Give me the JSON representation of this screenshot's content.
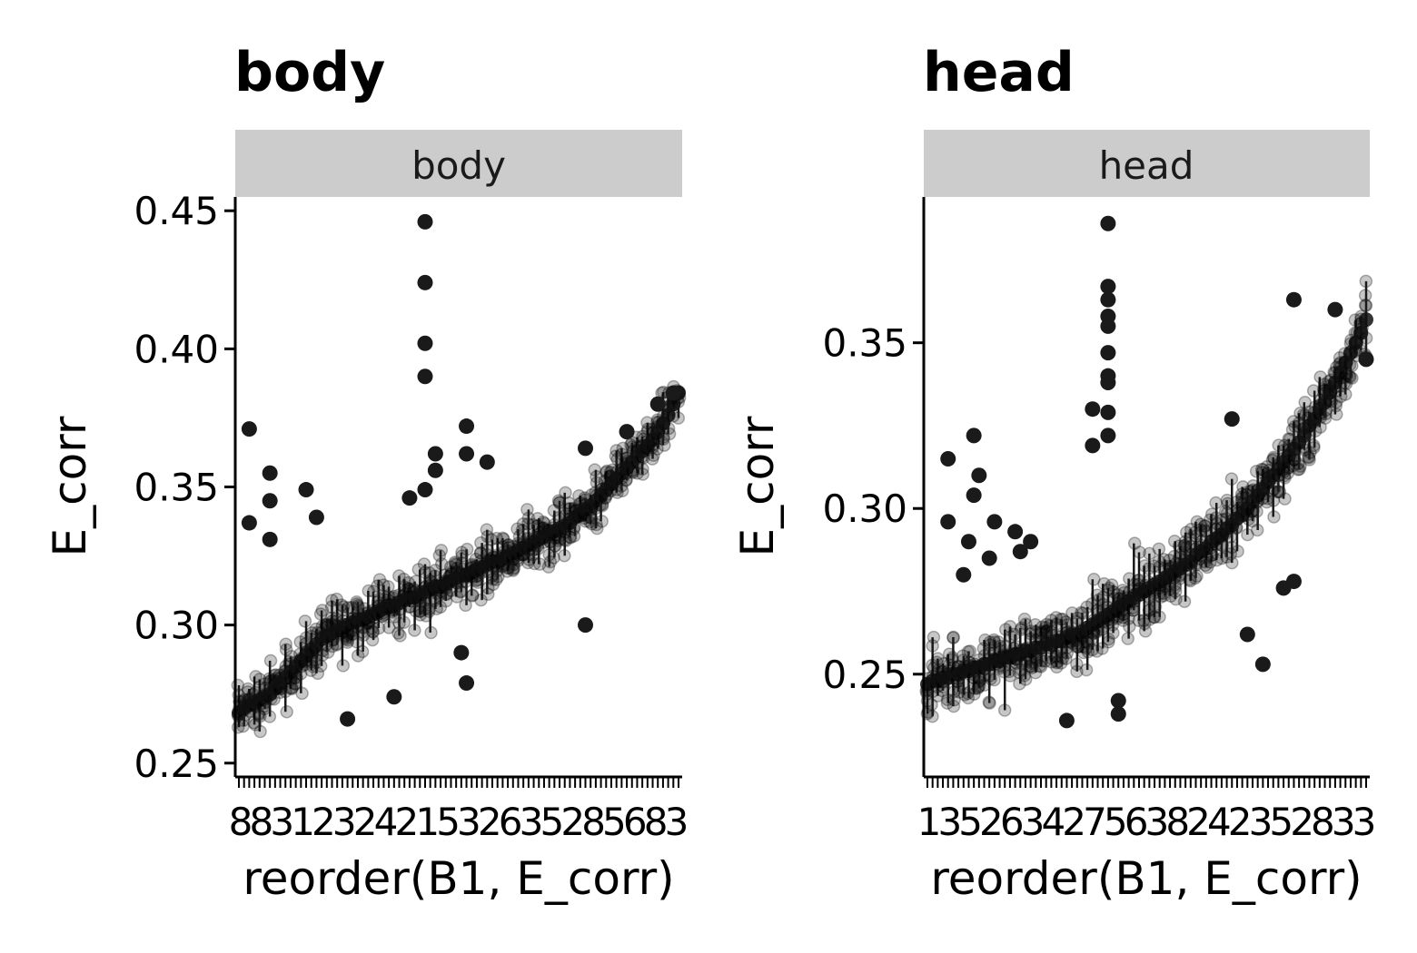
{
  "chart_data": [
    {
      "type": "scatter",
      "title": "body",
      "strip_label": "body",
      "xlabel": "reorder(B1, E_corr)",
      "ylabel": "E_corr",
      "ylim": [
        0.245,
        0.455
      ],
      "yticks": [
        "0.25",
        "0.30",
        "0.35",
        "0.40",
        "0.45"
      ],
      "ytick_values": [
        0.25,
        0.3,
        0.35,
        0.4,
        0.45
      ],
      "n_categories": 86,
      "x_tick_labels_visible": [
        "8",
        "8",
        "3",
        "1",
        "2",
        "3",
        "2",
        "4",
        "2",
        "1",
        "5",
        "3",
        "2",
        "6",
        "3",
        "5",
        "2",
        "8",
        "5",
        "6",
        "8",
        "3"
      ],
      "category_means": [
        0.268,
        0.27,
        0.271,
        0.272,
        0.273,
        0.274,
        0.275,
        0.277,
        0.279,
        0.281,
        0.283,
        0.285,
        0.287,
        0.289,
        0.291,
        0.293,
        0.295,
        0.296,
        0.297,
        0.298,
        0.299,
        0.3,
        0.301,
        0.302,
        0.302,
        0.303,
        0.304,
        0.305,
        0.306,
        0.307,
        0.307,
        0.308,
        0.309,
        0.31,
        0.31,
        0.311,
        0.312,
        0.313,
        0.314,
        0.314,
        0.315,
        0.316,
        0.317,
        0.318,
        0.318,
        0.319,
        0.32,
        0.321,
        0.322,
        0.323,
        0.323,
        0.324,
        0.325,
        0.326,
        0.327,
        0.328,
        0.329,
        0.33,
        0.331,
        0.332,
        0.333,
        0.334,
        0.335,
        0.336,
        0.337,
        0.339,
        0.34,
        0.342,
        0.343,
        0.345,
        0.347,
        0.349,
        0.351,
        0.353,
        0.355,
        0.357,
        0.359,
        0.361,
        0.363,
        0.365,
        0.367,
        0.37,
        0.373,
        0.376,
        0.38,
        0.384
      ],
      "outliers": [
        {
          "x": 36,
          "y": 0.446
        },
        {
          "x": 36,
          "y": 0.424
        },
        {
          "x": 36,
          "y": 0.402
        },
        {
          "x": 36,
          "y": 0.39
        },
        {
          "x": 36,
          "y": 0.349
        },
        {
          "x": 38,
          "y": 0.362
        },
        {
          "x": 38,
          "y": 0.356
        },
        {
          "x": 44,
          "y": 0.372
        },
        {
          "x": 44,
          "y": 0.362
        },
        {
          "x": 2,
          "y": 0.371
        },
        {
          "x": 2,
          "y": 0.337
        },
        {
          "x": 6,
          "y": 0.355
        },
        {
          "x": 6,
          "y": 0.345
        },
        {
          "x": 6,
          "y": 0.331
        },
        {
          "x": 13,
          "y": 0.349
        },
        {
          "x": 15,
          "y": 0.339
        },
        {
          "x": 48,
          "y": 0.359
        },
        {
          "x": 33,
          "y": 0.346
        },
        {
          "x": 67,
          "y": 0.3
        },
        {
          "x": 43,
          "y": 0.29
        },
        {
          "x": 44,
          "y": 0.279
        },
        {
          "x": 30,
          "y": 0.274
        },
        {
          "x": 21,
          "y": 0.266
        },
        {
          "x": 67,
          "y": 0.364
        },
        {
          "x": 75,
          "y": 0.37
        },
        {
          "x": 81,
          "y": 0.38
        },
        {
          "x": 84,
          "y": 0.384
        }
      ]
    },
    {
      "type": "scatter",
      "title": "head",
      "strip_label": "head",
      "xlabel": "reorder(B1, E_corr)",
      "ylabel": "E_corr",
      "ylim": [
        0.219,
        0.394
      ],
      "yticks": [
        "0.25",
        "0.30",
        "0.35"
      ],
      "ytick_values": [
        0.25,
        0.3,
        0.35
      ],
      "n_categories": 86,
      "x_tick_labels_visible": [
        "1",
        "3",
        "5",
        "2",
        "6",
        "3",
        "4",
        "2",
        "7",
        "5",
        "6",
        "3",
        "8",
        "2",
        "4",
        "2",
        "3",
        "5",
        "2",
        "8",
        "3",
        "3"
      ],
      "category_means": [
        0.247,
        0.248,
        0.248,
        0.249,
        0.249,
        0.25,
        0.25,
        0.251,
        0.251,
        0.252,
        0.252,
        0.253,
        0.253,
        0.254,
        0.254,
        0.255,
        0.255,
        0.256,
        0.256,
        0.257,
        0.257,
        0.258,
        0.258,
        0.259,
        0.259,
        0.26,
        0.26,
        0.261,
        0.262,
        0.262,
        0.263,
        0.264,
        0.265,
        0.266,
        0.267,
        0.268,
        0.269,
        0.27,
        0.271,
        0.272,
        0.273,
        0.274,
        0.275,
        0.276,
        0.277,
        0.278,
        0.279,
        0.28,
        0.281,
        0.282,
        0.283,
        0.284,
        0.286,
        0.287,
        0.288,
        0.29,
        0.291,
        0.292,
        0.294,
        0.295,
        0.297,
        0.298,
        0.3,
        0.302,
        0.304,
        0.306,
        0.308,
        0.31,
        0.312,
        0.314,
        0.316,
        0.318,
        0.32,
        0.322,
        0.325,
        0.327,
        0.33,
        0.332,
        0.335,
        0.338,
        0.341,
        0.344,
        0.347,
        0.35,
        0.353,
        0.357
      ],
      "outliers": [
        {
          "x": 35,
          "y": 0.386
        },
        {
          "x": 35,
          "y": 0.367
        },
        {
          "x": 35,
          "y": 0.363
        },
        {
          "x": 35,
          "y": 0.358
        },
        {
          "x": 35,
          "y": 0.355
        },
        {
          "x": 35,
          "y": 0.347
        },
        {
          "x": 35,
          "y": 0.34
        },
        {
          "x": 35,
          "y": 0.338
        },
        {
          "x": 35,
          "y": 0.329
        },
        {
          "x": 35,
          "y": 0.322
        },
        {
          "x": 32,
          "y": 0.33
        },
        {
          "x": 32,
          "y": 0.319
        },
        {
          "x": 9,
          "y": 0.322
        },
        {
          "x": 10,
          "y": 0.31
        },
        {
          "x": 9,
          "y": 0.304
        },
        {
          "x": 4,
          "y": 0.315
        },
        {
          "x": 4,
          "y": 0.296
        },
        {
          "x": 8,
          "y": 0.29
        },
        {
          "x": 13,
          "y": 0.296
        },
        {
          "x": 17,
          "y": 0.293
        },
        {
          "x": 20,
          "y": 0.29
        },
        {
          "x": 12,
          "y": 0.285
        },
        {
          "x": 18,
          "y": 0.287
        },
        {
          "x": 7,
          "y": 0.28
        },
        {
          "x": 71,
          "y": 0.363
        },
        {
          "x": 59,
          "y": 0.327
        },
        {
          "x": 69,
          "y": 0.276
        },
        {
          "x": 62,
          "y": 0.262
        },
        {
          "x": 65,
          "y": 0.253
        },
        {
          "x": 79,
          "y": 0.36
        },
        {
          "x": 37,
          "y": 0.242
        },
        {
          "x": 37,
          "y": 0.238
        },
        {
          "x": 27,
          "y": 0.236
        },
        {
          "x": 71,
          "y": 0.278
        },
        {
          "x": 85,
          "y": 0.345
        }
      ]
    }
  ]
}
